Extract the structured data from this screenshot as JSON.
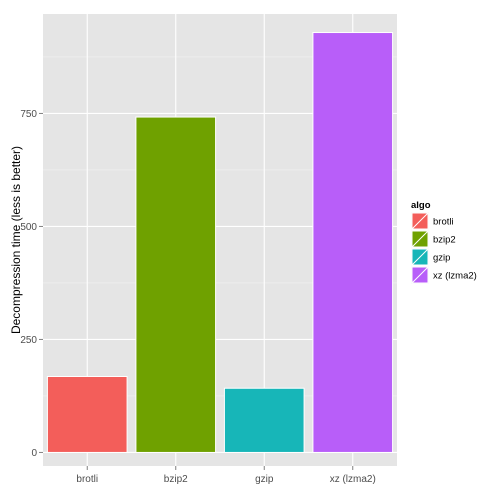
{
  "chart_data": {
    "type": "bar",
    "categories": [
      "brotli",
      "bzip2",
      "gzip",
      "xz (lzma2)"
    ],
    "values": [
      168,
      742,
      142,
      929
    ],
    "colors": [
      "#f35e5a",
      "#6fa100",
      "#17b6b8",
      "#b85ef9"
    ],
    "ylabel": "Decompression time (less is better)",
    "xlabel": "",
    "yticks": [
      0,
      250,
      500,
      750
    ],
    "ytick_labels": [
      "0",
      "250",
      "500",
      "750"
    ],
    "ylim": [
      -30,
      970
    ],
    "grid": true,
    "legend": {
      "title": "algo",
      "position": "right",
      "entries": [
        "brotli",
        "bzip2",
        "gzip",
        "xz (lzma2)"
      ]
    }
  }
}
